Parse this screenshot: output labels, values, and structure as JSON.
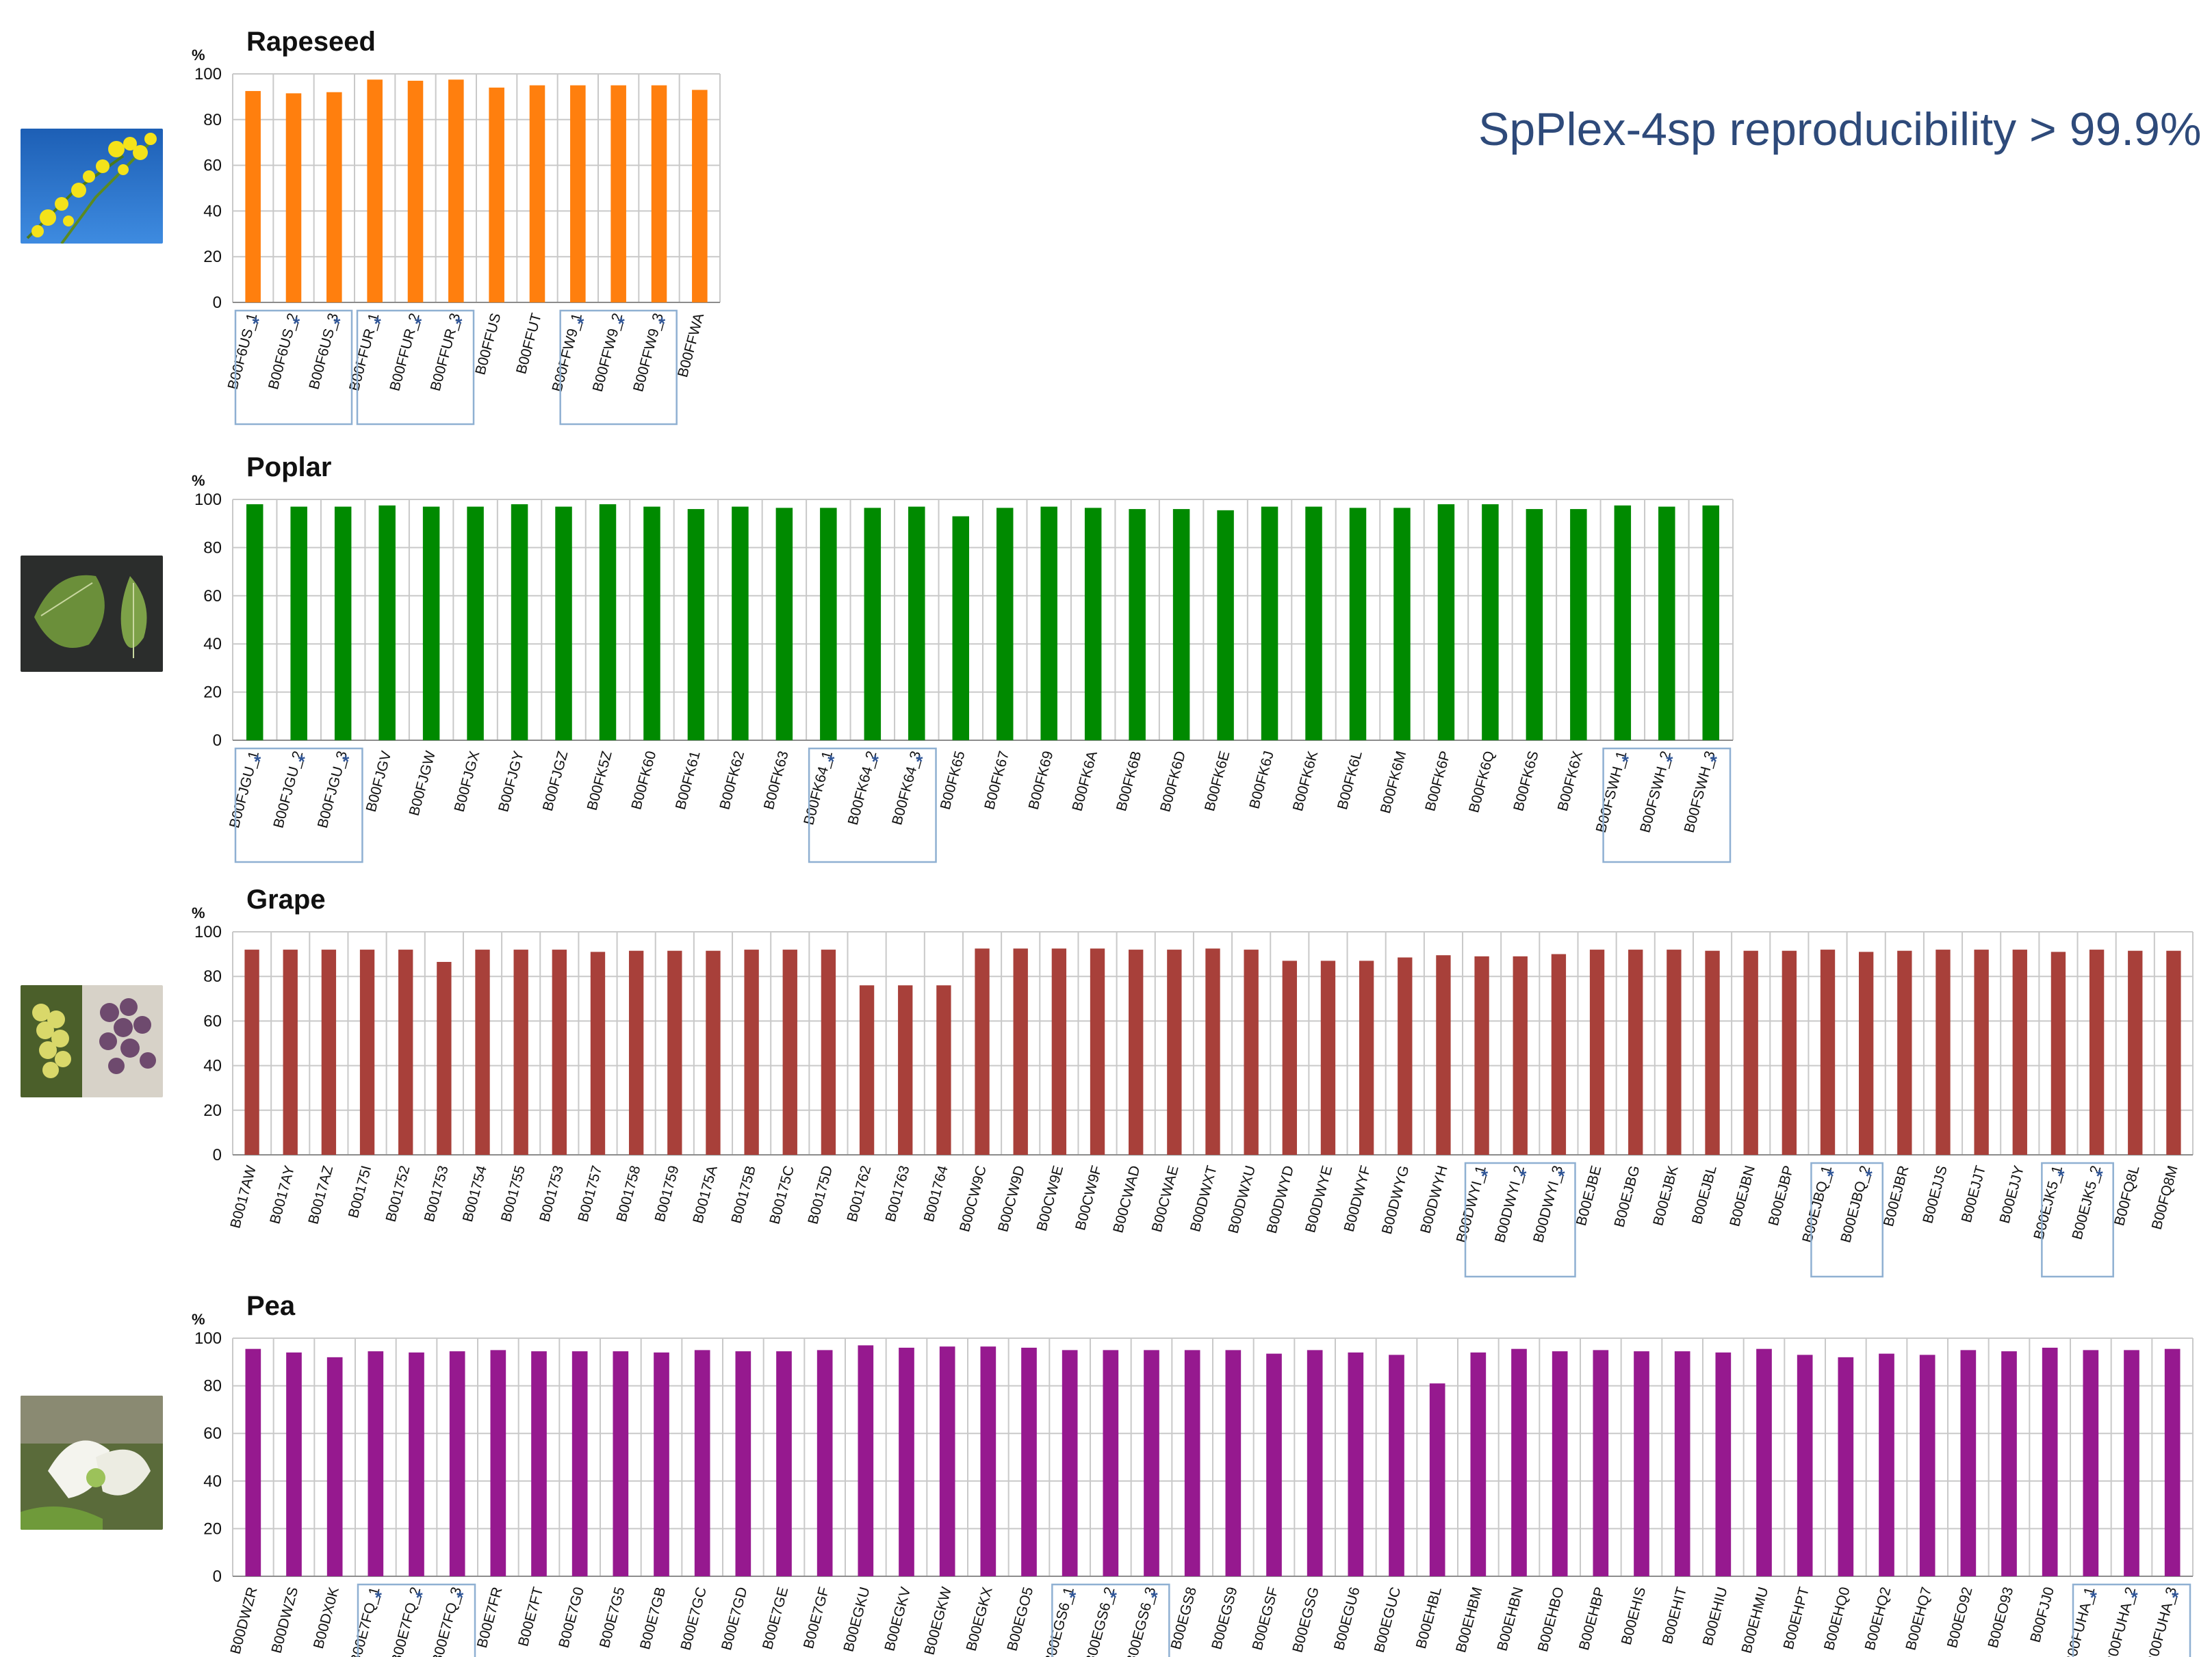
{
  "headline": "SpPlex-4sp reproducibility > 99.9%",
  "chart_data": [
    {
      "type": "bar",
      "title": "Rapeseed",
      "unit": "%",
      "color": "#ff7f0e",
      "ylim": [
        0,
        100
      ],
      "yticks": [
        0,
        20,
        40,
        60,
        80,
        100
      ],
      "grid": true,
      "categories": [
        "B00F6US_1",
        "B00F6US_2",
        "B00F6US_3",
        "B00FFUR_1",
        "B00FFUR_2",
        "B00FFUR_3",
        "B00FFUS",
        "B00FFUT",
        "B00FFW9_1",
        "B00FFW9_2",
        "B00FFW9_3",
        "B00FFWA"
      ],
      "values": [
        92.5,
        91.5,
        92,
        97.5,
        97,
        97.5,
        94,
        95,
        95,
        95,
        95,
        93
      ],
      "starred": [
        0,
        1,
        2,
        3,
        4,
        5,
        8,
        9,
        10
      ],
      "groups": [
        [
          0,
          2
        ],
        [
          3,
          5
        ],
        [
          8,
          10
        ]
      ]
    },
    {
      "type": "bar",
      "title": "Poplar",
      "unit": "%",
      "color": "#008a00",
      "ylim": [
        0,
        100
      ],
      "yticks": [
        0,
        20,
        40,
        60,
        80,
        100
      ],
      "grid": true,
      "categories": [
        "B00FJGU_1",
        "B00FJGU_2",
        "B00FJGU_3",
        "B00FJGV",
        "B00FJGW",
        "B00FJGX",
        "B00FJGY",
        "B00FJGZ",
        "B00FK5Z",
        "B00FK60",
        "B00FK61",
        "B00FK62",
        "B00FK63",
        "B00FK64_1",
        "B00FK64_2",
        "B00FK64_3",
        "B00FK65",
        "B00FK67",
        "B00FK69",
        "B00FK6A",
        "B00FK6B",
        "B00FK6D",
        "B00FK6E",
        "B00FK6J",
        "B00FK6K",
        "B00FK6L",
        "B00FK6M",
        "B00FK6P",
        "B00FK6Q",
        "B00FK6S",
        "B00FK6X",
        "B00FSWH_1",
        "B00FSWH_2",
        "B00FSWH_3"
      ],
      "values": [
        98,
        97,
        97,
        97.5,
        97,
        97,
        98,
        97,
        98,
        97,
        96,
        97,
        96.5,
        96.5,
        96.5,
        97,
        93,
        96.5,
        97,
        96.5,
        96,
        96,
        95.5,
        97,
        97,
        96.5,
        96.5,
        98,
        98,
        96,
        96,
        97.5,
        97,
        97.5
      ],
      "starred": [
        0,
        1,
        2,
        13,
        14,
        15,
        31,
        32,
        33
      ],
      "groups": [
        [
          0,
          2
        ],
        [
          13,
          15
        ],
        [
          31,
          33
        ]
      ]
    },
    {
      "type": "bar",
      "title": "Grape",
      "unit": "%",
      "color": "#a8403a",
      "ylim": [
        0,
        100
      ],
      "yticks": [
        0,
        20,
        40,
        60,
        80,
        100
      ],
      "grid": true,
      "categories": [
        "B0017AW",
        "B0017AY",
        "B0017AZ",
        "B00175I",
        "B001752",
        "B001753",
        "B001754",
        "B001755",
        "B001753",
        "B001757",
        "B001758",
        "B001759",
        "B00175A",
        "B00175B",
        "B00175C",
        "B00175D",
        "B001762",
        "B001763",
        "B001764",
        "B00CW9C",
        "B00CW9D",
        "B00CW9E",
        "B00CW9F",
        "B00CWAD",
        "B00CWAE",
        "B00DWXT",
        "B00DWXU",
        "B00DWYD",
        "B00DWYE",
        "B00DWYF",
        "B00DWYG",
        "B00DWYH",
        "B00DWYI_1",
        "B00DWYI_2",
        "B00DWYI_3",
        "B00EJBE",
        "B00EJBG",
        "B00EJBK",
        "B00EJBL",
        "B00EJBN",
        "B00EJBP",
        "B00EJBQ_1",
        "B00EJBQ_2",
        "B00EJBR",
        "B00EJJS",
        "B00EJJT",
        "B00EJJY",
        "B00EJK5_1",
        "B00EJK5_2",
        "B00FQ8L",
        "B00FQ8M"
      ],
      "values": [
        92,
        92,
        92,
        92,
        92,
        86.5,
        92,
        92,
        92,
        91,
        91.5,
        91.5,
        91.5,
        92,
        92,
        92,
        76,
        76,
        76,
        92.5,
        92.5,
        92.5,
        92.5,
        92,
        92,
        92.5,
        92,
        87,
        87,
        87,
        88.5,
        89.5,
        89,
        89,
        90,
        92,
        92,
        92,
        91.5,
        91.5,
        91.5,
        92,
        91,
        91.5,
        92,
        92,
        92,
        91,
        92,
        91.5,
        91.5
      ],
      "starred": [
        32,
        33,
        34,
        41,
        42,
        47,
        48
      ],
      "groups": [
        [
          32,
          34
        ],
        [
          41,
          42
        ],
        [
          47,
          48
        ]
      ]
    },
    {
      "type": "bar",
      "title": "Pea",
      "unit": "%",
      "color": "#96198f",
      "ylim": [
        0,
        100
      ],
      "yticks": [
        0,
        20,
        40,
        60,
        80,
        100
      ],
      "grid": true,
      "categories": [
        "B00DWZR",
        "B00DWZS",
        "B00DX0K",
        "B00E7FQ_1",
        "B00E7FQ_2",
        "B00E7FQ_3",
        "B00E7FR",
        "B00E7FT",
        "B00E7G0",
        "B00E7G5",
        "B00E7GB",
        "B00E7GC",
        "B00E7GD",
        "B00E7GE",
        "B00E7GF",
        "B00EGKU",
        "B00EGKV",
        "B00EGKW",
        "B00EGKX",
        "B00EGO5",
        "B00EGS6_1",
        "B00EGS6_2",
        "B00EGS6_3",
        "B00EGS8",
        "B00EGS9",
        "B00EGSF",
        "B00EGSG",
        "B00EGU6",
        "B00EGUC",
        "B00EHBL",
        "B00EHBM",
        "B00EHBN",
        "B00EHBO",
        "B00EHBP",
        "B00EHIS",
        "B00EHIT",
        "B00EHIU",
        "B00EHMU",
        "B00EHPT",
        "B00EHQ0",
        "B00EHQ2",
        "B00EHQ7",
        "B00EO92",
        "B00EO93",
        "B00FJJ0",
        "B00FUHA_1",
        "B00FUHA_2",
        "B00FUHA_3"
      ],
      "values": [
        95.5,
        94,
        92,
        94.5,
        94,
        94.5,
        95,
        94.5,
        94.5,
        94.5,
        94,
        95,
        94.5,
        94.5,
        95,
        97,
        96,
        96.5,
        96.5,
        96,
        95,
        95,
        95,
        95,
        95,
        93.5,
        95,
        94,
        93,
        81,
        94,
        95.5,
        94.5,
        95,
        94.5,
        94.5,
        94,
        95.5,
        93,
        92,
        93.5,
        93,
        95,
        94.5,
        96,
        95,
        95,
        95.5
      ],
      "starred": [
        3,
        4,
        5,
        20,
        21,
        22,
        45,
        46,
        47
      ],
      "groups": [
        [
          3,
          5
        ],
        [
          20,
          22
        ],
        [
          45,
          47
        ]
      ]
    }
  ]
}
